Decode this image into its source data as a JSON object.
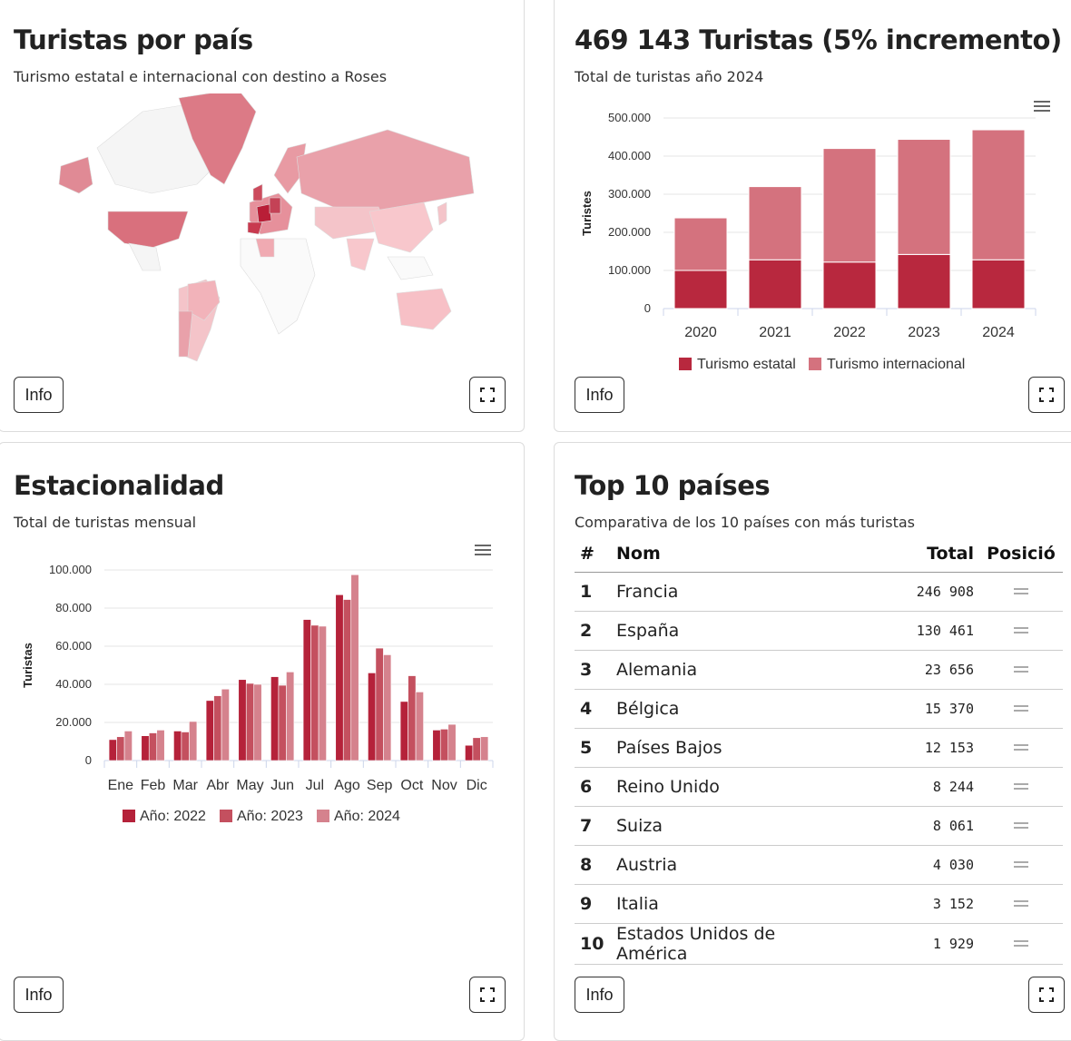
{
  "colors": {
    "c2022": "#b5223a",
    "c2023": "#c4505f",
    "c2024": "#d5828d",
    "estatal": "#b8283e",
    "internacional": "#d4727e"
  },
  "map": {
    "title": "Turistas por país",
    "subtitle": "Turismo estatal e internacional con destino a Roses",
    "info_label": "Info"
  },
  "annual": {
    "title": "469 143 Turistas (5% incremento)",
    "subtitle": "Total de turistas año 2024",
    "info_label": "Info"
  },
  "monthly": {
    "title": "Estacionalidad",
    "subtitle": "Total de turistas mensual",
    "info_label": "Info"
  },
  "top": {
    "title": "Top 10 países",
    "subtitle": "Comparativa de los 10 países con más turistas",
    "headers": {
      "rank": "#",
      "name": "Nom",
      "total": "Total",
      "pos": "Posició"
    },
    "rows": [
      {
        "rank": "1",
        "name": "Francia",
        "total": "246 908"
      },
      {
        "rank": "2",
        "name": "España",
        "total": "130 461"
      },
      {
        "rank": "3",
        "name": "Alemania",
        "total": "23 656"
      },
      {
        "rank": "4",
        "name": "Bélgica",
        "total": "15 370"
      },
      {
        "rank": "5",
        "name": "Países Bajos",
        "total": "12 153"
      },
      {
        "rank": "6",
        "name": "Reino Unido",
        "total": "8 244"
      },
      {
        "rank": "7",
        "name": "Suiza",
        "total": "8 061"
      },
      {
        "rank": "8",
        "name": "Austria",
        "total": "4 030"
      },
      {
        "rank": "9",
        "name": "Italia",
        "total": "3 152"
      },
      {
        "rank": "10",
        "name": "Estados Unidos de América",
        "total": "1 929"
      }
    ],
    "info_label": "Info"
  },
  "chart_data": [
    {
      "type": "bar",
      "stacked": true,
      "categories": [
        "2020",
        "2021",
        "2022",
        "2023",
        "2024"
      ],
      "series": [
        {
          "name": "Turismo estatal",
          "values": [
            100000,
            128000,
            122000,
            142000,
            128000
          ]
        },
        {
          "name": "Turismo internacional",
          "values": [
            138000,
            192000,
            298000,
            302000,
            341000
          ]
        }
      ],
      "ylabel": "Turistes",
      "yticks": [
        "0",
        "100.000",
        "200.000",
        "300.000",
        "400.000",
        "500.000"
      ],
      "ylim": [
        0,
        500000
      ],
      "legend": "bottom-center"
    },
    {
      "type": "bar",
      "categories": [
        "Ene",
        "Feb",
        "Mar",
        "Abr",
        "May",
        "Jun",
        "Jul",
        "Ago",
        "Sep",
        "Oct",
        "Nov",
        "Dic"
      ],
      "series": [
        {
          "name": "Año: 2022",
          "values": [
            11000,
            13000,
            15500,
            31500,
            42500,
            44000,
            74000,
            87000,
            46000,
            31000,
            16000,
            8000
          ]
        },
        {
          "name": "Año: 2023",
          "values": [
            12500,
            14500,
            15000,
            34000,
            40500,
            39500,
            71000,
            84500,
            59000,
            44500,
            16500,
            12000
          ]
        },
        {
          "name": "Año: 2024",
          "values": [
            15500,
            16000,
            20500,
            37500,
            40000,
            46500,
            70500,
            97500,
            55500,
            36000,
            19000,
            12500
          ]
        }
      ],
      "ylabel": "Turistas",
      "yticks": [
        "0",
        "20.000",
        "40.000",
        "60.000",
        "80.000",
        "100.000"
      ],
      "ylim": [
        0,
        100000
      ],
      "legend": "bottom-center"
    }
  ]
}
